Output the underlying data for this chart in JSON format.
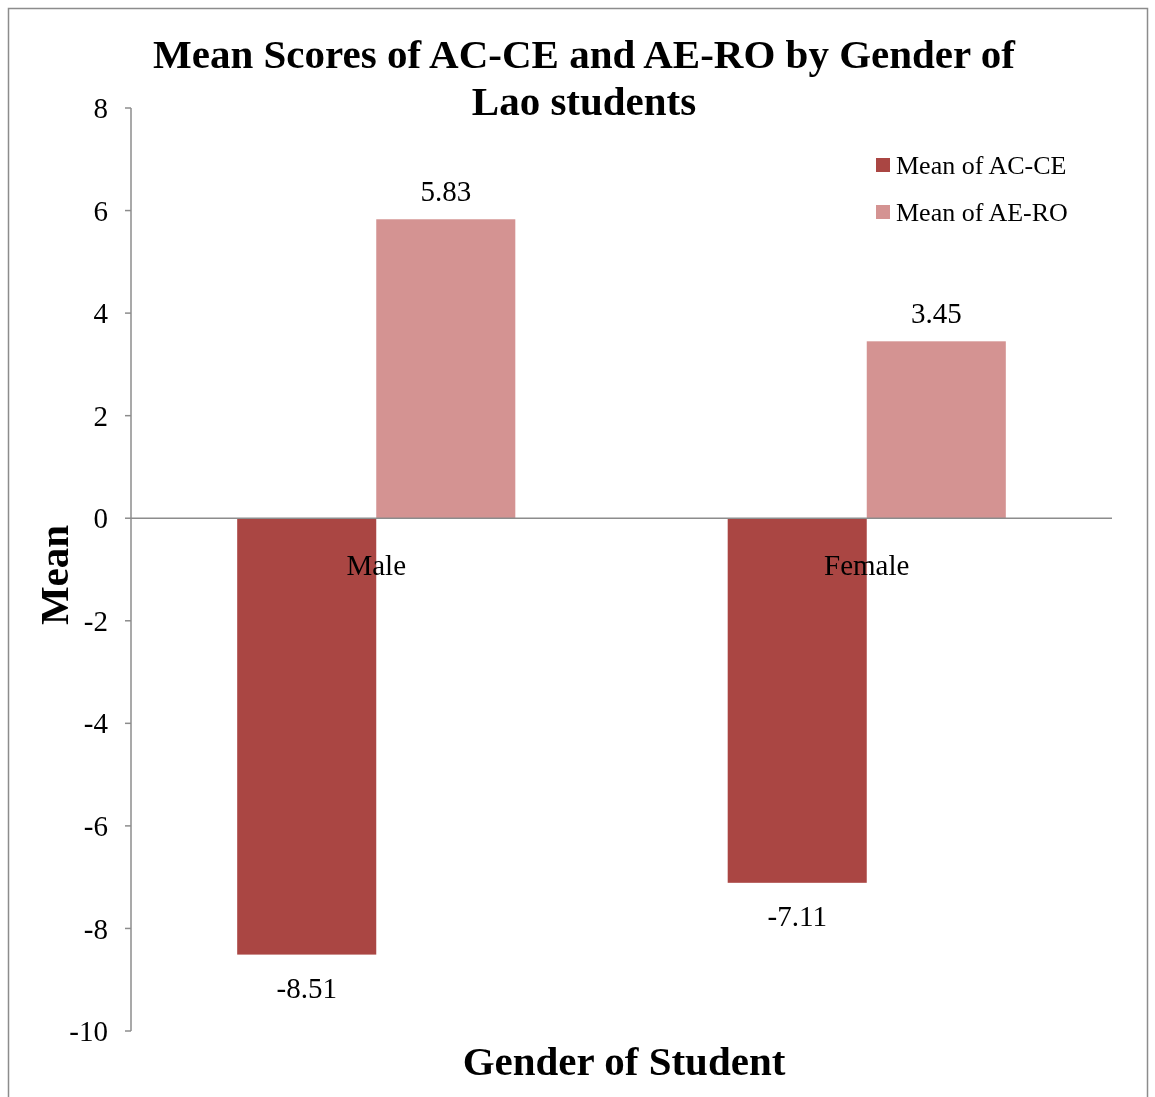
{
  "chart_data": {
    "type": "bar",
    "title": "Mean Scores of AC-CE and AE-RO by Gender of Lao students",
    "xlabel": "Gender of Student",
    "ylabel": "Mean",
    "categories": [
      "Male",
      "Female"
    ],
    "series": [
      {
        "name": "Mean of AC-CE",
        "color": "#aa4643",
        "values": [
          -8.51,
          -7.11
        ]
      },
      {
        "name": "Mean of AE-RO",
        "color": "#d49392",
        "values": [
          5.83,
          3.45
        ]
      }
    ],
    "ylim": [
      -10,
      8
    ],
    "yticks": [
      -10,
      -8,
      -6,
      -4,
      -2,
      0,
      2,
      4,
      6,
      8
    ],
    "grid": false,
    "legend": "top right",
    "data_labels": true
  }
}
